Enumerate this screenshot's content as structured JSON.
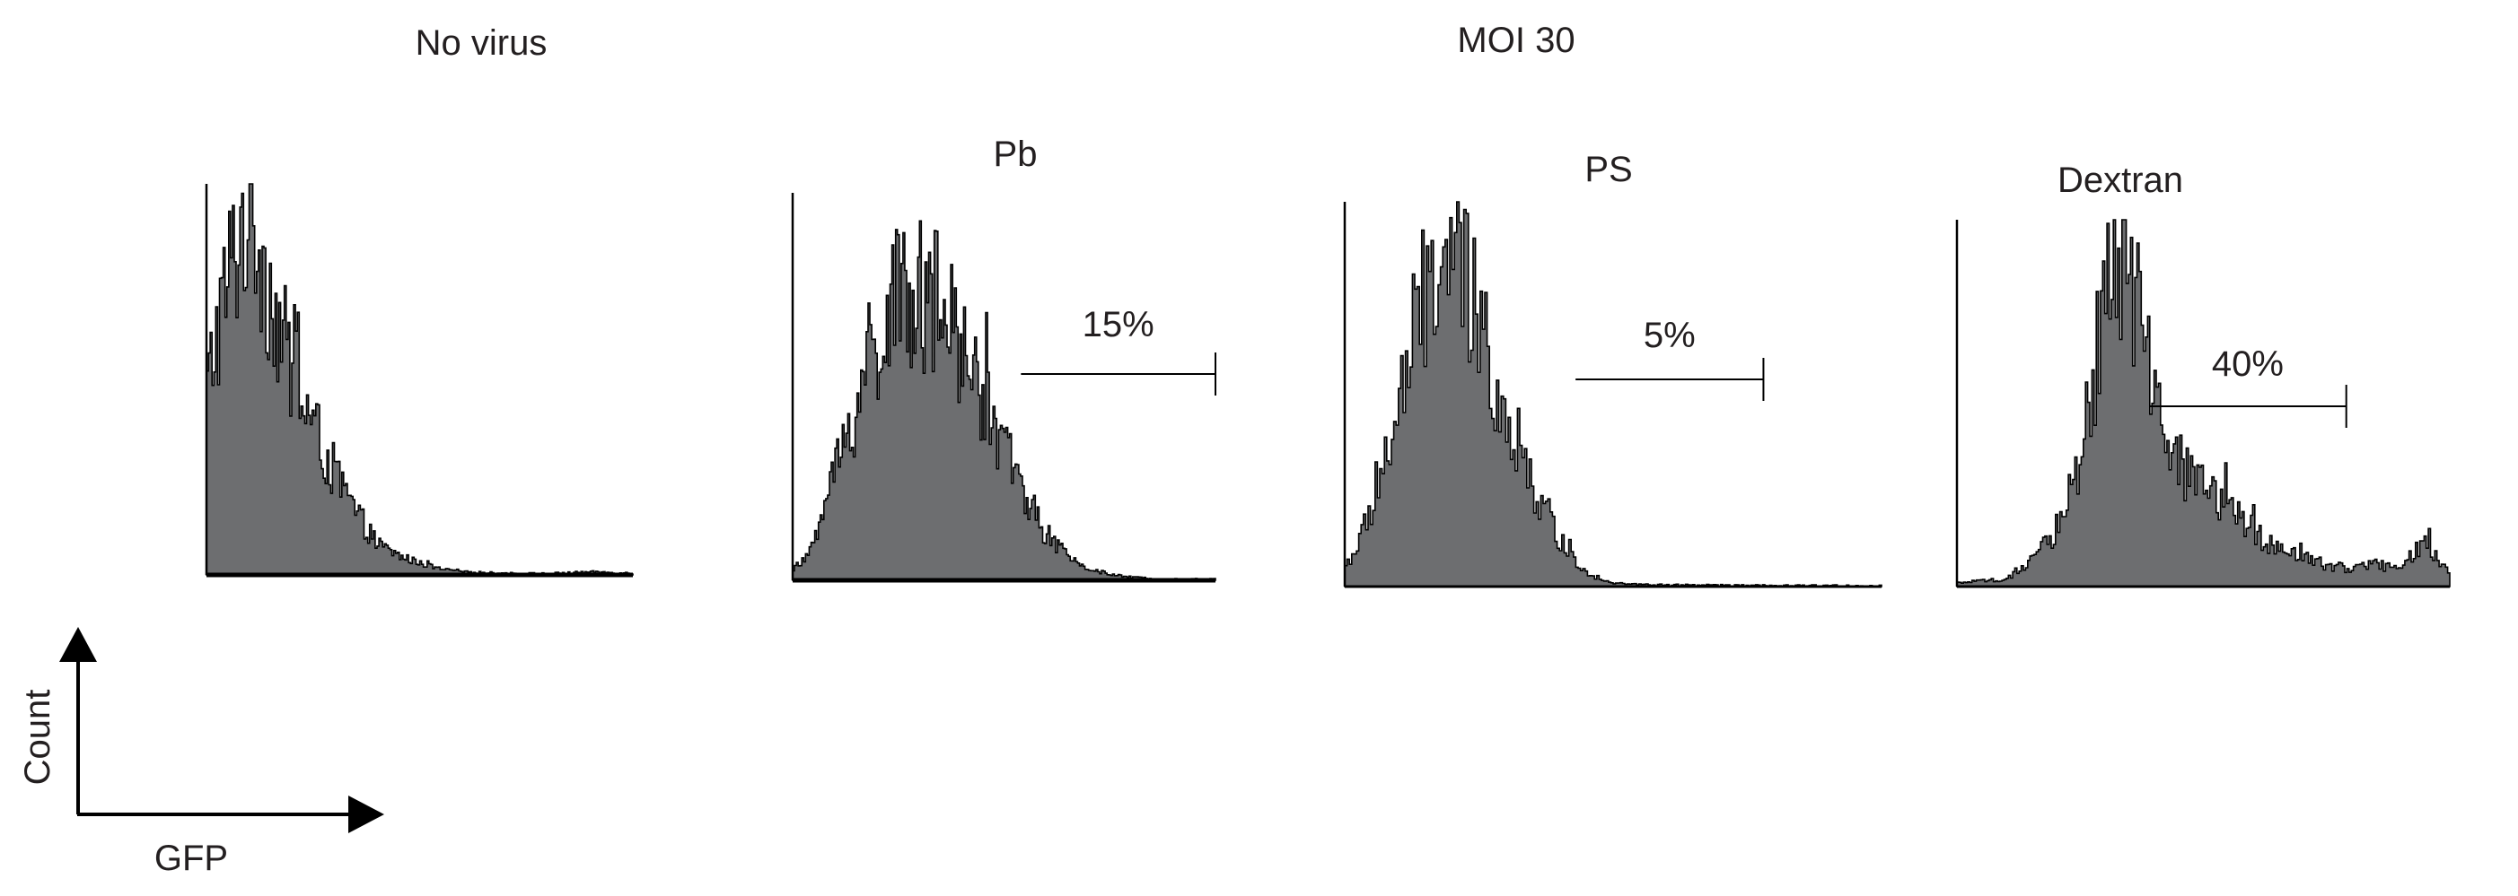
{
  "figure": {
    "group_title_left": "No virus",
    "group_title_right": "MOI 30",
    "legend_y_label": "Count",
    "legend_x_label": "GFP"
  },
  "colors": {
    "histogram_fill": "#6d6e70",
    "outline": "#000000",
    "text": "#231f20"
  },
  "chart_data": [
    {
      "type": "area",
      "title": "",
      "xlabel": "GFP",
      "ylabel": "Count",
      "xlim": [
        0,
        1
      ],
      "ylim": [
        0,
        1
      ],
      "x": [
        0.0,
        0.02,
        0.05,
        0.08,
        0.1,
        0.12,
        0.15,
        0.18,
        0.2,
        0.25,
        0.3,
        0.35,
        0.4,
        0.45,
        0.5,
        0.55,
        0.6,
        0.7,
        0.8,
        0.9,
        1.0
      ],
      "y": [
        0.45,
        0.6,
        0.75,
        0.88,
        0.95,
        0.88,
        0.72,
        0.6,
        0.52,
        0.38,
        0.26,
        0.16,
        0.08,
        0.05,
        0.03,
        0.015,
        0.008,
        0.004,
        0.003,
        0.008,
        0.004
      ],
      "gate": null
    },
    {
      "type": "area",
      "title": "Pb",
      "xlabel": "GFP",
      "ylabel": "Count",
      "xlim": [
        0,
        1
      ],
      "ylim": [
        0,
        1
      ],
      "x": [
        0.0,
        0.03,
        0.06,
        0.1,
        0.15,
        0.2,
        0.25,
        0.3,
        0.35,
        0.4,
        0.45,
        0.5,
        0.55,
        0.6,
        0.65,
        0.7,
        0.75,
        0.8,
        0.85,
        0.9,
        1.0
      ],
      "y": [
        0.03,
        0.05,
        0.14,
        0.28,
        0.45,
        0.62,
        0.72,
        0.74,
        0.7,
        0.6,
        0.48,
        0.34,
        0.22,
        0.12,
        0.06,
        0.03,
        0.015,
        0.008,
        0.004,
        0.003,
        0.002
      ],
      "gate": {
        "label": "15%",
        "from": 0.54,
        "to": 1.0
      }
    },
    {
      "type": "area",
      "title": "PS",
      "xlabel": "GFP",
      "ylabel": "Count",
      "xlim": [
        0,
        1
      ],
      "ylim": [
        0,
        1
      ],
      "x": [
        0.0,
        0.03,
        0.06,
        0.1,
        0.13,
        0.16,
        0.19,
        0.22,
        0.25,
        0.28,
        0.31,
        0.34,
        0.38,
        0.42,
        0.46,
        0.5,
        0.55,
        0.6,
        0.7,
        0.8,
        1.0
      ],
      "y": [
        0.05,
        0.12,
        0.25,
        0.45,
        0.65,
        0.8,
        0.85,
        0.8,
        0.68,
        0.55,
        0.42,
        0.3,
        0.18,
        0.08,
        0.03,
        0.01,
        0.005,
        0.004,
        0.003,
        0.002,
        0.002
      ],
      "gate": {
        "label": "5%",
        "from": 0.43,
        "to": 0.78
      }
    },
    {
      "type": "area",
      "title": "Dextran",
      "xlabel": "GFP",
      "ylabel": "Count",
      "xlim": [
        0,
        1
      ],
      "ylim": [
        0,
        1
      ],
      "x": [
        0.0,
        0.1,
        0.15,
        0.2,
        0.25,
        0.28,
        0.31,
        0.34,
        0.37,
        0.4,
        0.43,
        0.48,
        0.55,
        0.6,
        0.65,
        0.7,
        0.75,
        0.8,
        0.85,
        0.9,
        0.95,
        1.0
      ],
      "y": [
        0.01,
        0.02,
        0.06,
        0.15,
        0.35,
        0.6,
        0.85,
        0.95,
        0.72,
        0.5,
        0.35,
        0.3,
        0.22,
        0.15,
        0.1,
        0.08,
        0.06,
        0.05,
        0.06,
        0.05,
        0.12,
        0.03
      ],
      "gate": {
        "label": "40%",
        "from": 0.39,
        "to": 0.79
      }
    }
  ]
}
